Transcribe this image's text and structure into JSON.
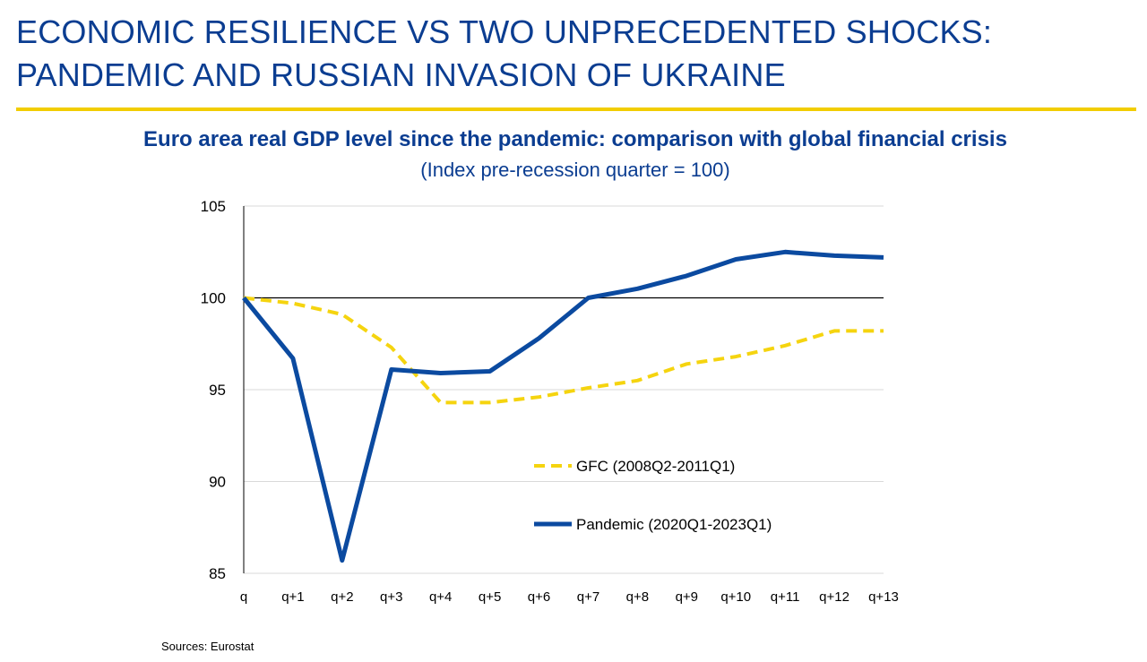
{
  "slide": {
    "title_line1": "ECONOMIC RESILIENCE VS TWO UNPRECEDENTED SHOCKS:",
    "title_line2": "PANDEMIC AND RUSSIAN INVASION OF UKRAINE",
    "source": "Sources: Eurostat"
  },
  "colors": {
    "title_blue": "#0b3d91",
    "rule_yellow": "#f2cd00",
    "gfc_yellow": "#f5d40f",
    "pandemic_blue": "#0b4aa0"
  },
  "chart_data": {
    "type": "line",
    "title": "Euro area real GDP level since the pandemic: comparison with global financial crisis",
    "subtitle": "(Index pre-recession quarter = 100)",
    "categories": [
      "q",
      "q+1",
      "q+2",
      "q+3",
      "q+4",
      "q+5",
      "q+6",
      "q+7",
      "q+8",
      "q+9",
      "q+10",
      "q+11",
      "q+12",
      "q+13"
    ],
    "ylim": [
      85,
      105
    ],
    "yticks": [
      85,
      90,
      95,
      100,
      105
    ],
    "reference_line": 100,
    "grid": true,
    "legend_position": "lower-right inside plot",
    "series": [
      {
        "name": "GFC (2008Q2-2011Q1)",
        "style": "dashed",
        "color": "#f5d40f",
        "values": [
          100.0,
          99.7,
          99.1,
          97.3,
          94.3,
          94.3,
          94.6,
          95.1,
          95.5,
          96.4,
          96.8,
          97.4,
          98.2,
          98.2
        ]
      },
      {
        "name": "Pandemic (2020Q1-2023Q1)",
        "style": "solid",
        "color": "#0b4aa0",
        "values": [
          100.0,
          96.7,
          85.7,
          96.1,
          95.9,
          96.0,
          97.8,
          100.0,
          100.5,
          101.2,
          102.1,
          102.5,
          102.3,
          102.2
        ]
      }
    ]
  }
}
